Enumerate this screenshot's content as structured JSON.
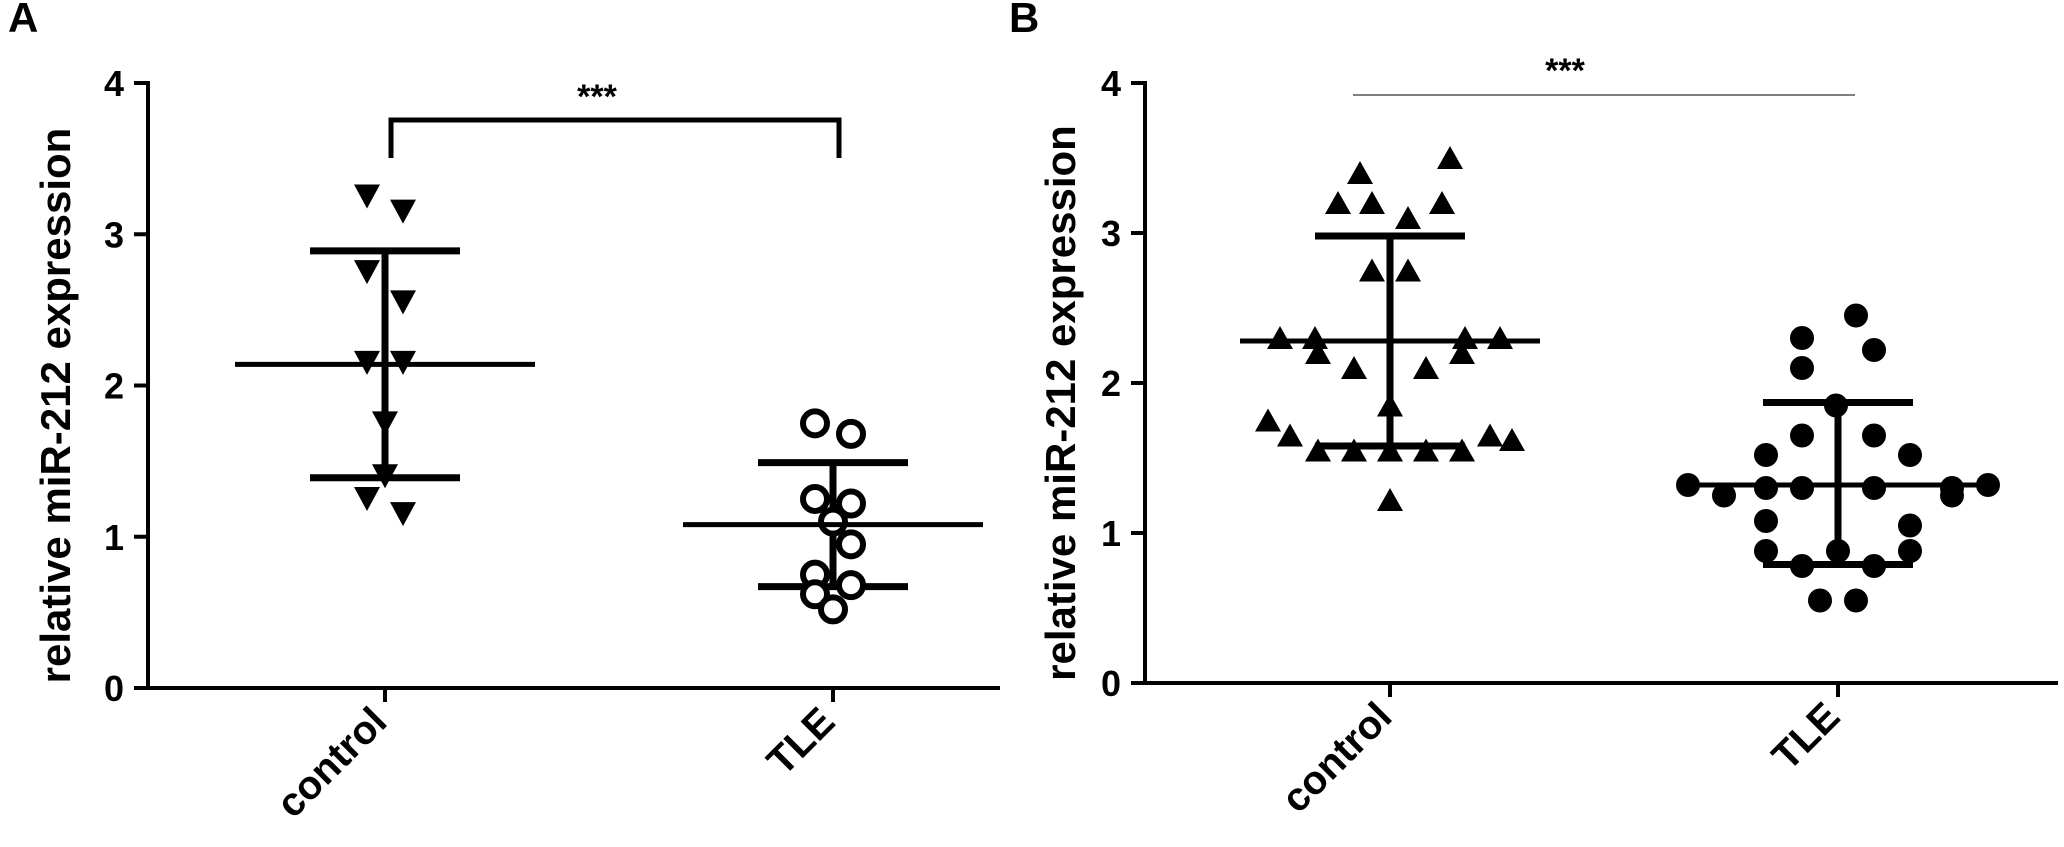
{
  "chart_data": [
    {
      "panel": "A",
      "type": "scatter",
      "ylabel": "relative miR-212 expression",
      "xlabel": "",
      "ylim": [
        0,
        4
      ],
      "yticks": [
        "0",
        "1",
        "2",
        "3",
        "4"
      ],
      "categories": [
        "control",
        "TLE"
      ],
      "significance": "***",
      "series": [
        {
          "category": "control",
          "marker": "triangle-down-filled",
          "values": [
            3.25,
            3.15,
            2.75,
            2.55,
            2.15,
            2.15,
            1.75,
            1.4,
            1.25,
            1.15
          ],
          "mean": 2.14,
          "sd_upper": 2.89,
          "sd_lower": 1.39
        },
        {
          "category": "TLE",
          "marker": "circle-open",
          "values": [
            1.75,
            1.68,
            1.25,
            1.22,
            1.1,
            0.95,
            0.75,
            0.68,
            0.62,
            0.52
          ],
          "mean": 1.08,
          "sd_upper": 1.49,
          "sd_lower": 0.67
        }
      ]
    },
    {
      "panel": "B",
      "type": "scatter",
      "ylabel": "relative miR-212 expression",
      "xlabel": "",
      "ylim": [
        0,
        4
      ],
      "yticks": [
        "0",
        "1",
        "2",
        "3",
        "4"
      ],
      "categories": [
        "control",
        "TLE"
      ],
      "significance": "***",
      "series": [
        {
          "category": "control",
          "marker": "triangle-up-filled",
          "values": [
            3.5,
            3.4,
            3.2,
            3.2,
            3.2,
            3.1,
            2.75,
            2.75,
            2.3,
            2.3,
            2.3,
            2.3,
            2.2,
            2.2,
            2.1,
            2.1,
            1.85,
            1.75,
            1.65,
            1.65,
            1.62,
            1.55,
            1.55,
            1.55,
            1.55,
            1.55,
            1.22
          ],
          "mean": 2.28,
          "sd_upper": 2.98,
          "sd_lower": 1.58
        },
        {
          "category": "TLE",
          "marker": "circle-filled",
          "values": [
            2.45,
            2.3,
            2.22,
            2.1,
            1.85,
            1.65,
            1.65,
            1.52,
            1.52,
            1.32,
            1.32,
            1.3,
            1.3,
            1.3,
            1.3,
            1.25,
            1.25,
            1.08,
            1.05,
            0.88,
            0.88,
            0.88,
            0.78,
            0.78,
            0.55,
            0.55
          ],
          "mean": 1.32,
          "sd_upper": 1.87,
          "sd_lower": 0.79
        }
      ]
    }
  ]
}
